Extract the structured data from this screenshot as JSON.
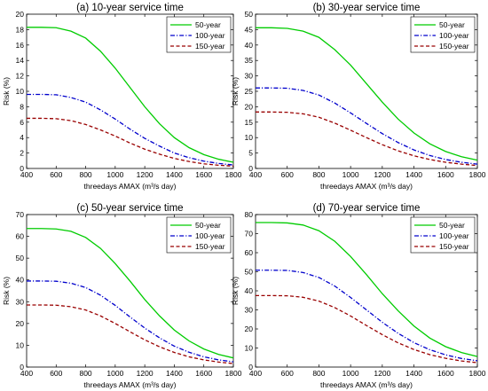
{
  "chart_data": [
    {
      "type": "line",
      "title": "(a) 10-year service time",
      "xlabel": "threedays AMAX (m³/s day)",
      "ylabel": "Risk (%)",
      "xlim": [
        400,
        1800
      ],
      "ylim": [
        0,
        20
      ],
      "xticks": [
        400,
        600,
        800,
        1000,
        1200,
        1400,
        1600,
        1800
      ],
      "yticks": [
        0,
        2,
        4,
        6,
        8,
        10,
        12,
        14,
        16,
        18,
        20
      ],
      "legend": "top-right",
      "x": [
        400,
        500,
        600,
        700,
        800,
        900,
        1000,
        1100,
        1200,
        1300,
        1400,
        1500,
        1600,
        1700,
        1800
      ],
      "series": [
        {
          "name": "50-year",
          "color": "#00cc00",
          "dash": "solid",
          "values": [
            18.3,
            18.3,
            18.25,
            17.8,
            16.9,
            15.2,
            13.0,
            10.5,
            8.0,
            5.8,
            4.0,
            2.7,
            1.8,
            1.2,
            0.8
          ]
        },
        {
          "name": "100-year",
          "color": "#0000cc",
          "dash": "dashdot",
          "values": [
            9.6,
            9.6,
            9.55,
            9.2,
            8.6,
            7.6,
            6.4,
            5.1,
            3.9,
            2.9,
            2.0,
            1.4,
            0.95,
            0.65,
            0.45
          ]
        },
        {
          "name": "150-year",
          "color": "#990000",
          "dash": "dashed",
          "values": [
            6.5,
            6.5,
            6.45,
            6.2,
            5.7,
            5.0,
            4.2,
            3.3,
            2.5,
            1.85,
            1.3,
            0.9,
            0.6,
            0.42,
            0.3
          ]
        }
      ]
    },
    {
      "type": "line",
      "title": "(b) 30-year service time",
      "xlabel": "threedays AMAX (m³/s day)",
      "ylabel": "Risk (%)",
      "xlim": [
        400,
        1800
      ],
      "ylim": [
        0,
        50
      ],
      "xticks": [
        400,
        600,
        800,
        1000,
        1200,
        1400,
        1600,
        1800
      ],
      "yticks": [
        0,
        5,
        10,
        15,
        20,
        25,
        30,
        35,
        40,
        45,
        50
      ],
      "legend": "top-right",
      "x": [
        400,
        500,
        600,
        700,
        800,
        900,
        1000,
        1100,
        1200,
        1300,
        1400,
        1500,
        1600,
        1700,
        1800
      ],
      "series": [
        {
          "name": "50-year",
          "color": "#00cc00",
          "dash": "solid",
          "values": [
            45.6,
            45.6,
            45.4,
            44.5,
            42.5,
            38.5,
            33.5,
            27.5,
            21.5,
            16.0,
            11.5,
            8.0,
            5.5,
            3.8,
            2.7
          ]
        },
        {
          "name": "100-year",
          "color": "#0000cc",
          "dash": "dashdot",
          "values": [
            26.1,
            26.1,
            26.0,
            25.3,
            23.8,
            21.2,
            18.0,
            14.6,
            11.3,
            8.4,
            6.0,
            4.2,
            2.9,
            2.0,
            1.4
          ]
        },
        {
          "name": "150-year",
          "color": "#990000",
          "dash": "dashed",
          "values": [
            18.3,
            18.3,
            18.2,
            17.7,
            16.6,
            14.7,
            12.4,
            10.0,
            7.7,
            5.7,
            4.1,
            2.9,
            2.0,
            1.4,
            0.95
          ]
        }
      ]
    },
    {
      "type": "line",
      "title": "(c) 50-year service time",
      "xlabel": "threedays AMAX (m³/s day)",
      "ylabel": "Risk (%)",
      "xlim": [
        400,
        1800
      ],
      "ylim": [
        0,
        70
      ],
      "xticks": [
        400,
        600,
        800,
        1000,
        1200,
        1400,
        1600,
        1800
      ],
      "yticks": [
        0,
        10,
        20,
        30,
        40,
        50,
        60,
        70
      ],
      "legend": "top-right",
      "x": [
        400,
        500,
        600,
        700,
        800,
        900,
        1000,
        1100,
        1200,
        1300,
        1400,
        1500,
        1600,
        1700,
        1800
      ],
      "series": [
        {
          "name": "50-year",
          "color": "#00cc00",
          "dash": "solid",
          "values": [
            63.6,
            63.6,
            63.4,
            62.3,
            59.5,
            54.5,
            47.5,
            39.5,
            31.0,
            23.5,
            17.0,
            12.0,
            8.3,
            5.8,
            4.2
          ]
        },
        {
          "name": "100-year",
          "color": "#0000cc",
          "dash": "dashdot",
          "values": [
            39.5,
            39.5,
            39.4,
            38.5,
            36.5,
            33.0,
            28.3,
            23.0,
            17.9,
            13.4,
            9.6,
            6.8,
            4.7,
            3.3,
            2.4
          ]
        },
        {
          "name": "150-year",
          "color": "#990000",
          "dash": "dashed",
          "values": [
            28.5,
            28.5,
            28.4,
            27.7,
            26.2,
            23.5,
            20.0,
            16.2,
            12.5,
            9.3,
            6.7,
            4.7,
            3.3,
            2.3,
            1.6
          ]
        }
      ]
    },
    {
      "type": "line",
      "title": "(d) 70-year service time",
      "xlabel": "threedays AMAX (m³/s day)",
      "ylabel": "Risk (%)",
      "xlim": [
        400,
        1800
      ],
      "ylim": [
        0,
        80
      ],
      "xticks": [
        400,
        600,
        800,
        1000,
        1200,
        1400,
        1600,
        1800
      ],
      "yticks": [
        0,
        10,
        20,
        30,
        40,
        50,
        60,
        70,
        80
      ],
      "legend": "top-right",
      "x": [
        400,
        500,
        600,
        700,
        800,
        900,
        1000,
        1100,
        1200,
        1300,
        1400,
        1500,
        1600,
        1700,
        1800
      ],
      "series": [
        {
          "name": "50-year",
          "color": "#00cc00",
          "dash": "solid",
          "values": [
            75.8,
            75.8,
            75.6,
            74.5,
            71.5,
            66.0,
            58.0,
            48.5,
            38.5,
            29.5,
            21.5,
            15.2,
            10.7,
            7.6,
            5.5
          ]
        },
        {
          "name": "100-year",
          "color": "#0000cc",
          "dash": "dashdot",
          "values": [
            50.8,
            50.8,
            50.7,
            49.6,
            47.0,
            42.5,
            36.5,
            30.0,
            23.5,
            17.7,
            12.8,
            9.1,
            6.4,
            4.5,
            3.3
          ]
        },
        {
          "name": "150-year",
          "color": "#990000",
          "dash": "dashed",
          "values": [
            37.5,
            37.5,
            37.4,
            36.6,
            34.6,
            31.2,
            26.8,
            21.8,
            17.0,
            12.7,
            9.2,
            6.5,
            4.6,
            3.2,
            2.3
          ]
        }
      ]
    }
  ]
}
